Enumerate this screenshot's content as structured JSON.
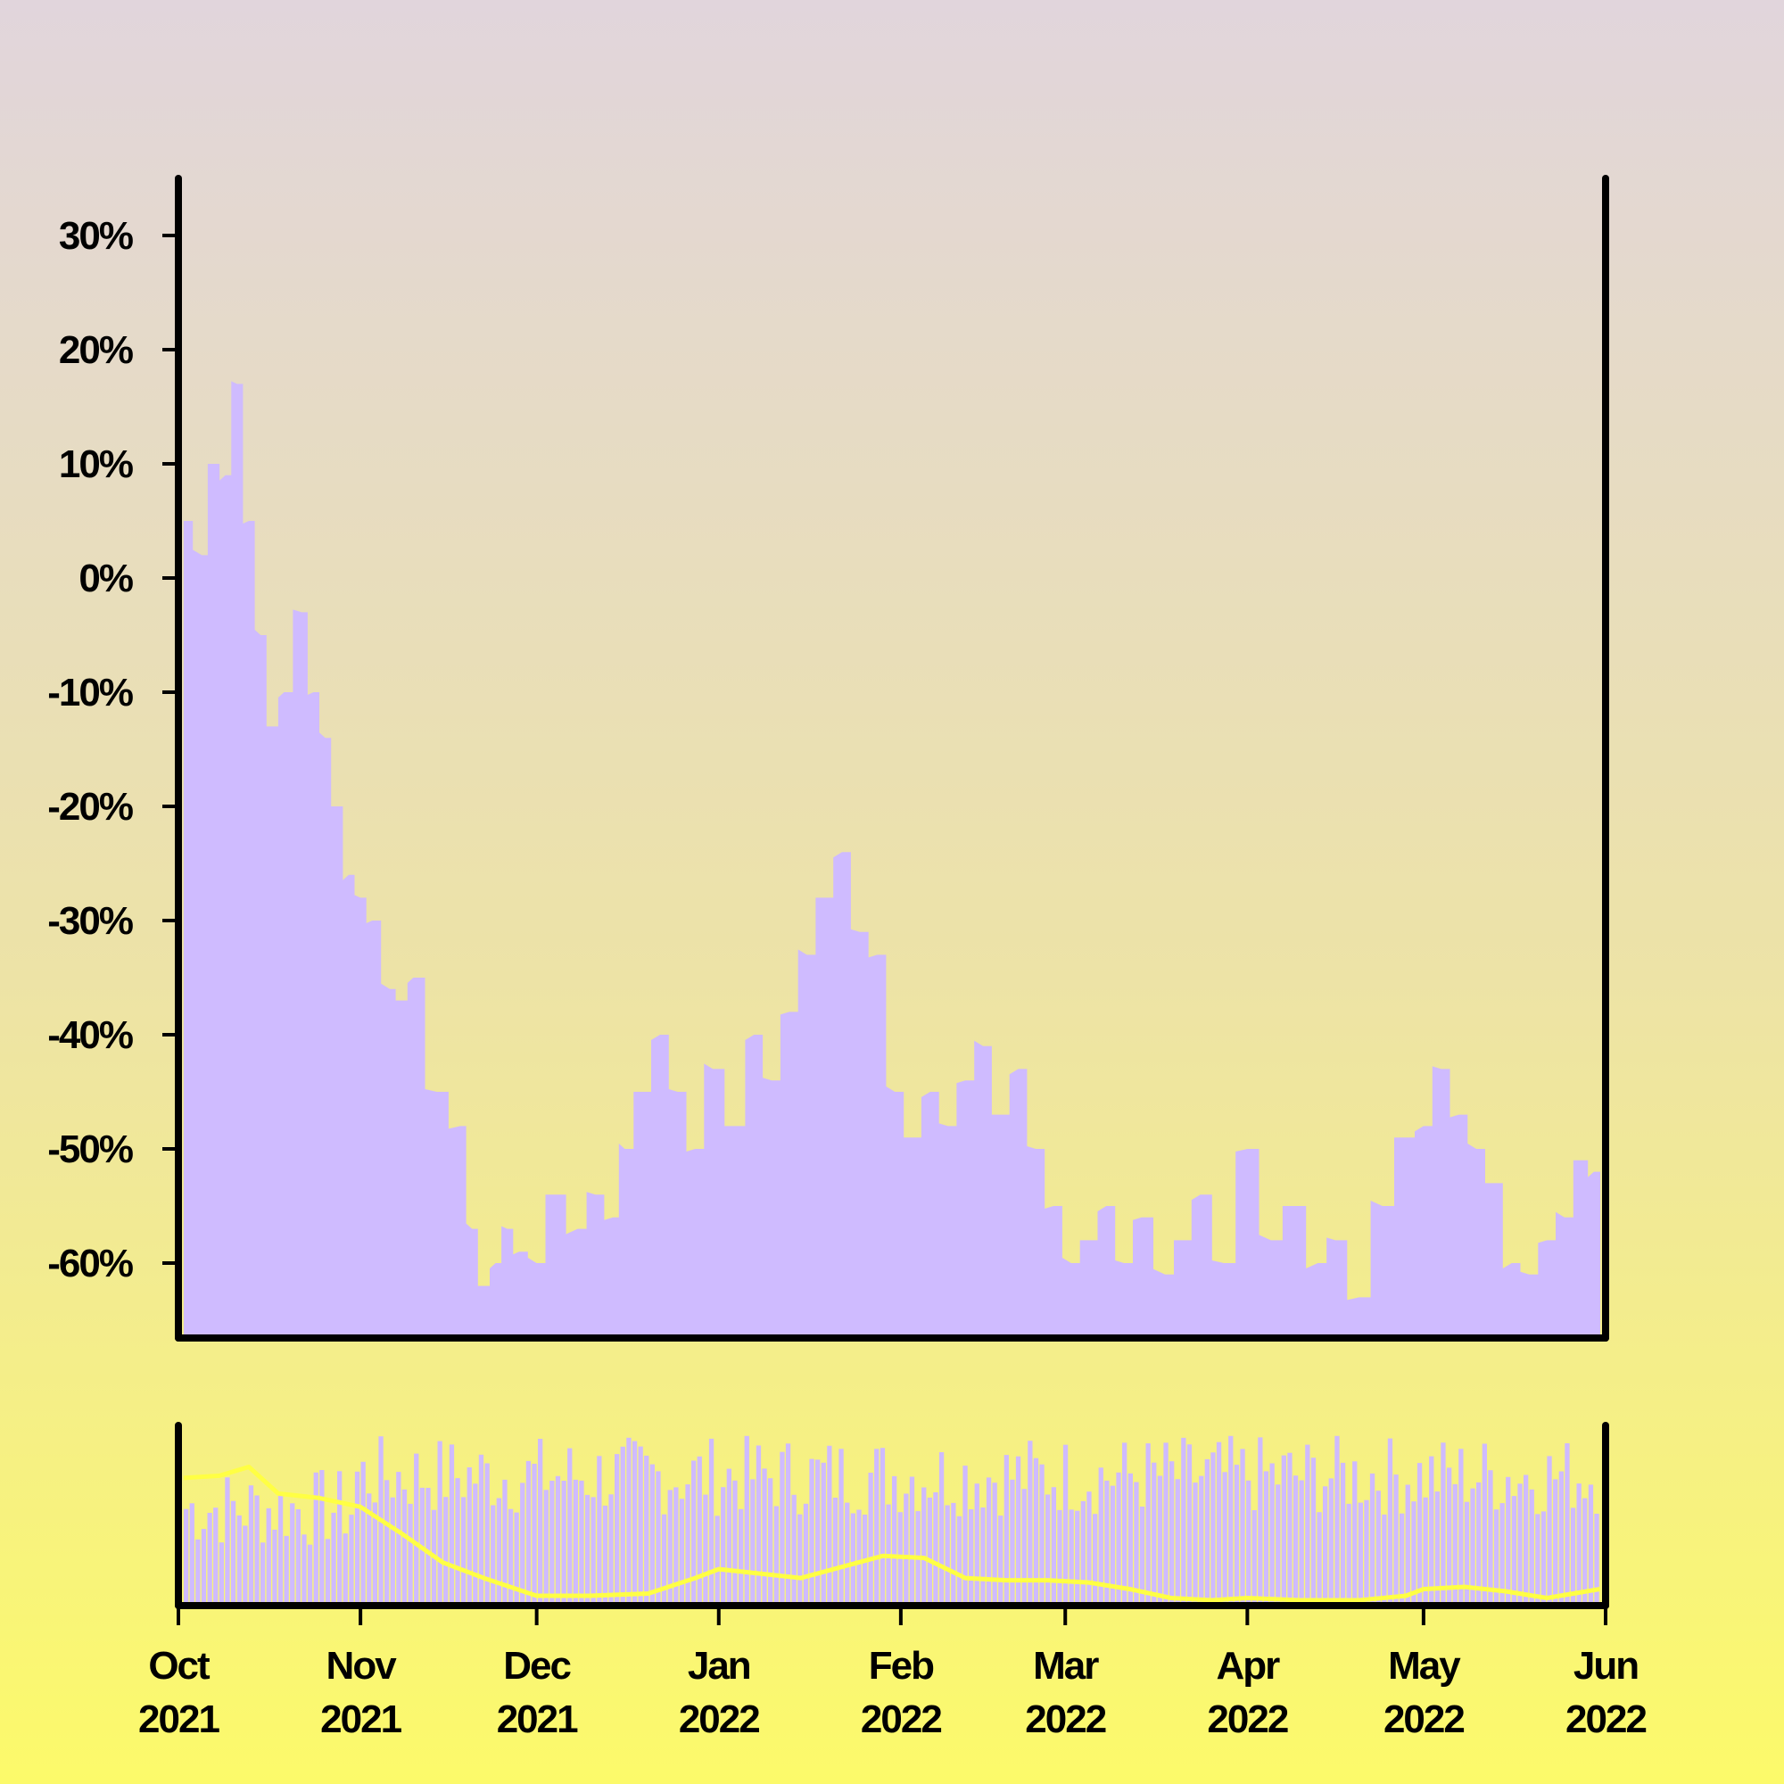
{
  "chart_data": {
    "type": "area",
    "colors": {
      "area_fill": "#cfbbff",
      "ma_line": "#ffff44",
      "axis": "#000000",
      "background_top": "#e1d5dc",
      "background_bottom": "#fcfa6a"
    },
    "y_axis": {
      "ticks": [
        30,
        20,
        10,
        0,
        -10,
        -20,
        -30,
        -40,
        -50,
        -60
      ],
      "tick_labels": [
        "30%",
        "20%",
        "10%",
        "0%",
        "-10%",
        "-20%",
        "-30%",
        "-40%",
        "-50%",
        "-60%"
      ],
      "ylim": [
        -65,
        35
      ]
    },
    "x_axis": {
      "xlim": [
        "2021-10-01",
        "2022-06-01"
      ],
      "ticks": [
        {
          "date": "2021-10-01",
          "month": "Oct",
          "year": "2021"
        },
        {
          "date": "2021-11-01",
          "month": "Nov",
          "year": "2021"
        },
        {
          "date": "2021-12-01",
          "month": "Dec",
          "year": "2021"
        },
        {
          "date": "2022-01-01",
          "month": "Jan",
          "year": "2022"
        },
        {
          "date": "2022-02-01",
          "month": "Feb",
          "year": "2022"
        },
        {
          "date": "2022-03-01",
          "month": "Mar",
          "year": "2022"
        },
        {
          "date": "2022-04-01",
          "month": "Apr",
          "year": "2022"
        },
        {
          "date": "2022-05-01",
          "month": "May",
          "year": "2022"
        },
        {
          "date": "2022-06-01",
          "month": "Jun",
          "year": "2022"
        }
      ]
    },
    "main_series": {
      "x": [
        "2021-10-01",
        "2021-10-05",
        "2021-10-07",
        "2021-10-09",
        "2021-10-11",
        "2021-10-13",
        "2021-10-15",
        "2021-10-17",
        "2021-10-19",
        "2021-10-22",
        "2021-10-24",
        "2021-10-26",
        "2021-10-28",
        "2021-10-30",
        "2021-11-01",
        "2021-11-03",
        "2021-11-06",
        "2021-11-08",
        "2021-11-10",
        "2021-11-14",
        "2021-11-18",
        "2021-11-20",
        "2021-11-22",
        "2021-11-24",
        "2021-11-26",
        "2021-11-28",
        "2021-12-01",
        "2021-12-04",
        "2021-12-08",
        "2021-12-11",
        "2021-12-14",
        "2021-12-16",
        "2021-12-19",
        "2021-12-22",
        "2021-12-25",
        "2021-12-28",
        "2021-12-31",
        "2022-01-04",
        "2022-01-07",
        "2022-01-10",
        "2022-01-13",
        "2022-01-16",
        "2022-01-19",
        "2022-01-22",
        "2022-01-25",
        "2022-01-28",
        "2022-01-31",
        "2022-02-03",
        "2022-02-06",
        "2022-02-09",
        "2022-02-12",
        "2022-02-15",
        "2022-02-18",
        "2022-02-21",
        "2022-02-24",
        "2022-02-27",
        "2022-03-02",
        "2022-03-05",
        "2022-03-08",
        "2022-03-11",
        "2022-03-14",
        "2022-03-18",
        "2022-03-21",
        "2022-03-24",
        "2022-03-28",
        "2022-04-01",
        "2022-04-05",
        "2022-04-09",
        "2022-04-13",
        "2022-04-16",
        "2022-04-20",
        "2022-04-24",
        "2022-04-28",
        "2022-05-01",
        "2022-05-04",
        "2022-05-07",
        "2022-05-10",
        "2022-05-13",
        "2022-05-16",
        "2022-05-19",
        "2022-05-22",
        "2022-05-25",
        "2022-05-28",
        "2022-05-30"
      ],
      "y": [
        5,
        2,
        10,
        9,
        17,
        5,
        -5,
        -13,
        -10,
        -3,
        -10,
        -14,
        -20,
        -26,
        -28,
        -30,
        -36,
        -37,
        -35,
        -45,
        -48,
        -57,
        -62,
        -60,
        -57,
        -59,
        -60,
        -54,
        -57,
        -54,
        -56,
        -50,
        -45,
        -40,
        -45,
        -50,
        -43,
        -48,
        -40,
        -44,
        -38,
        -33,
        -28,
        -24,
        -31,
        -33,
        -45,
        -49,
        -45,
        -48,
        -44,
        -41,
        -47,
        -43,
        -50,
        -55,
        -60,
        -58,
        -55,
        -60,
        -56,
        -61,
        -58,
        -54,
        -60,
        -50,
        -58,
        -55,
        -60,
        -58,
        -63,
        -55,
        -49,
        -48,
        -43,
        -47,
        -50,
        -53,
        -60,
        -61,
        -58,
        -56,
        -51,
        -52
      ]
    },
    "navigator_series": {
      "x": [
        "2021-10-01",
        "2021-10-08",
        "2021-10-13",
        "2021-10-18",
        "2021-10-25",
        "2021-11-01",
        "2021-11-08",
        "2021-11-15",
        "2021-11-22",
        "2021-12-01",
        "2021-12-10",
        "2021-12-20",
        "2021-12-28",
        "2022-01-01",
        "2022-01-08",
        "2022-01-15",
        "2022-01-22",
        "2022-01-29",
        "2022-02-05",
        "2022-02-12",
        "2022-02-19",
        "2022-02-26",
        "2022-03-05",
        "2022-03-12",
        "2022-03-19",
        "2022-03-26",
        "2022-04-01",
        "2022-04-10",
        "2022-04-20",
        "2022-04-28",
        "2022-05-01",
        "2022-05-08",
        "2022-05-15",
        "2022-05-22",
        "2022-05-31"
      ],
      "y": [
        5,
        6,
        10,
        -2,
        -4,
        -8,
        -20,
        -33,
        -40,
        -48,
        -48,
        -47,
        -40,
        -36,
        -38,
        -40,
        -35,
        -30,
        -31,
        -40,
        -41,
        -41,
        -42,
        -45,
        -49,
        -50,
        -49,
        -50,
        -50,
        -48,
        -45,
        -44,
        -46,
        -49,
        -45
      ]
    }
  }
}
